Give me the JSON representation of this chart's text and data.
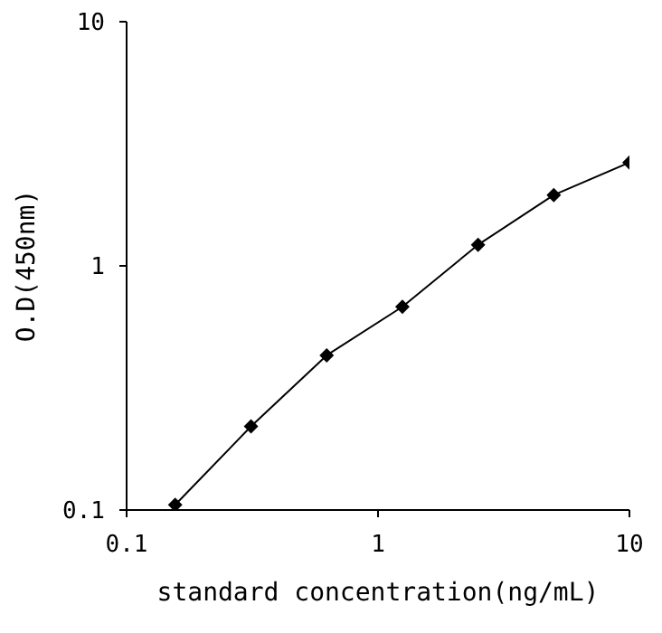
{
  "chart_data": {
    "type": "line",
    "xlabel": "standard concentration(ng/mL)",
    "ylabel": "O.D(450nm)",
    "x": [
      0.156,
      0.3125,
      0.625,
      1.25,
      2.5,
      5,
      10
    ],
    "series": [
      {
        "color": "#000000",
        "values": [
          0.105,
          0.22,
          0.43,
          0.68,
          1.22,
          1.95,
          2.65
        ]
      }
    ],
    "log": "xy",
    "xlim": [
      0.1,
      10
    ],
    "ylim": [
      0.1,
      10
    ],
    "xticks": [
      0.1,
      1,
      10
    ],
    "yticks": [
      0.1,
      1,
      10
    ],
    "marker": "diamond",
    "line_style": "solid"
  }
}
